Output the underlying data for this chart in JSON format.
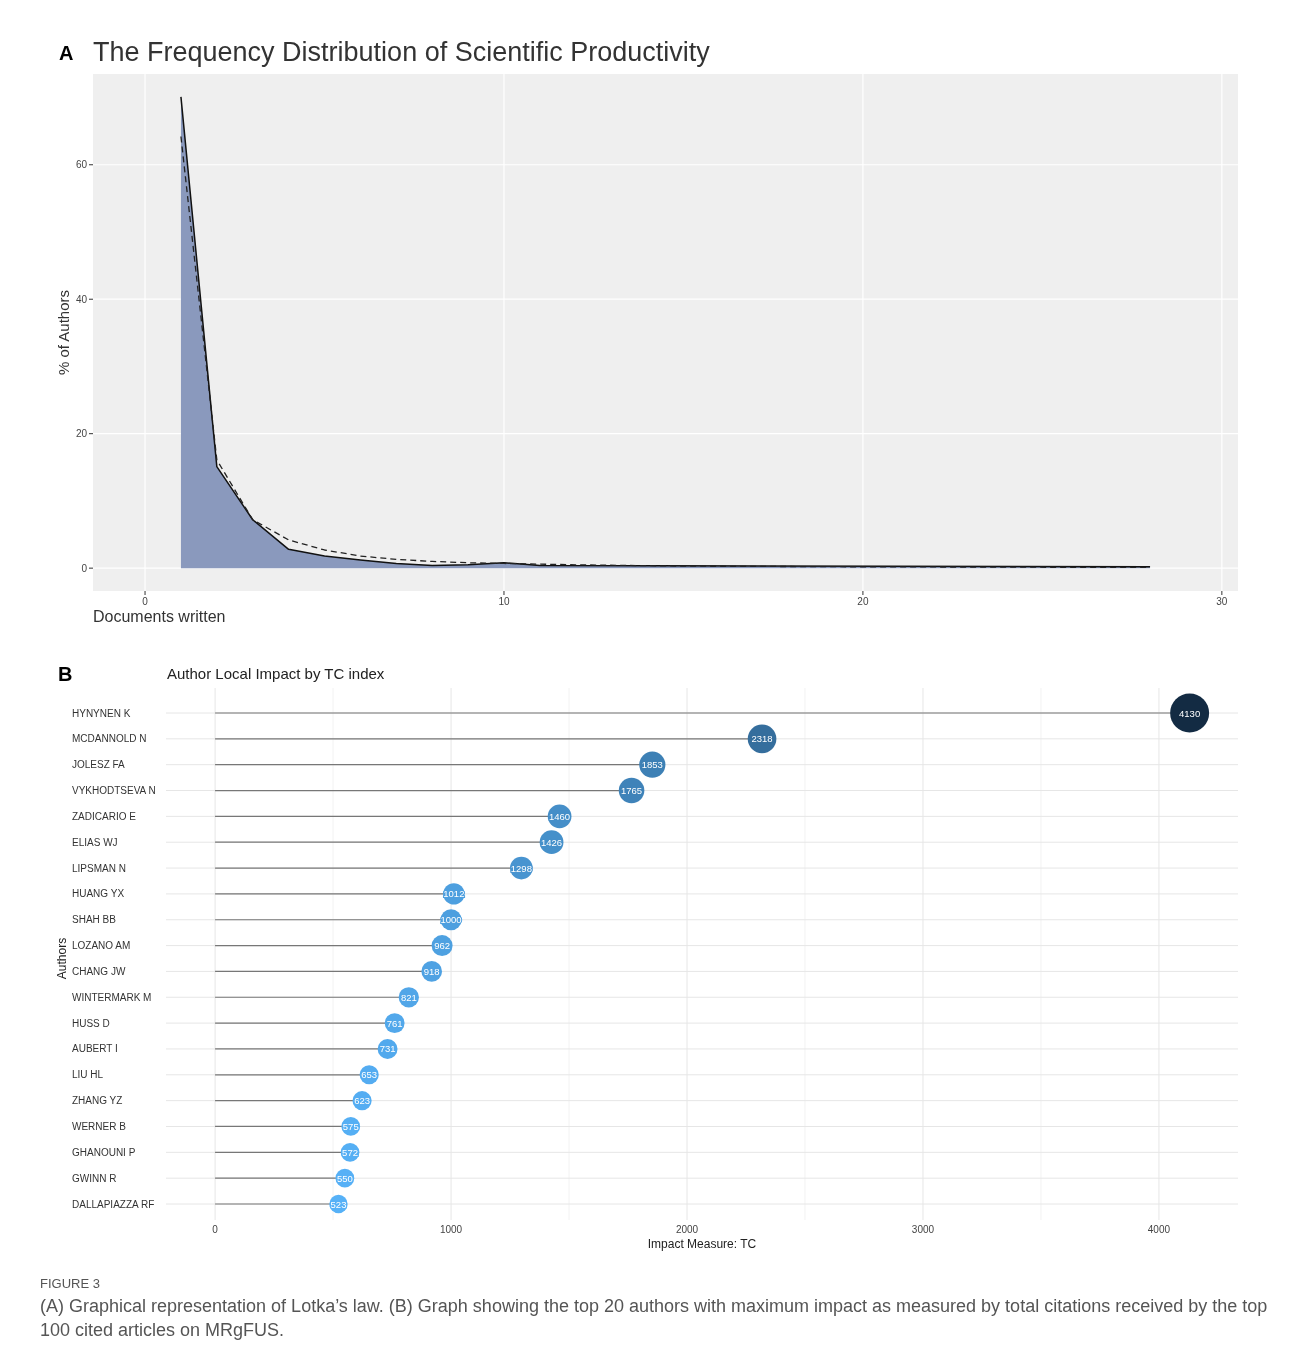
{
  "chart_data": [
    {
      "type": "area",
      "title": "The Frequency Distribution of Scientific Productivity",
      "annotations": [
        "A"
      ],
      "xlabel": "Documents written",
      "ylabel": "% of Authors",
      "xlim": [
        -1.45,
        30.45
      ],
      "ylim": [
        -3.4,
        73.5
      ],
      "xticks": [
        0,
        10,
        20,
        30
      ],
      "yticks": [
        0,
        20,
        40,
        60
      ],
      "grid": true,
      "series": [
        {
          "type": "area",
          "color": "#8a99bd",
          "x": [
            1,
            2,
            3,
            4,
            5,
            6,
            7,
            8,
            9,
            10,
            11,
            28
          ],
          "values": [
            70.1,
            15.1,
            7.2,
            2.8,
            1.8,
            1.2,
            0.7,
            0.4,
            0.5,
            0.8,
            0.4,
            0.2
          ]
        },
        {
          "type": "line",
          "color": "#222222",
          "line_style": "dashed",
          "x": [
            1,
            2,
            3,
            4,
            5,
            6,
            7,
            8,
            9,
            10,
            12,
            15,
            20,
            28
          ],
          "values": [
            64.2,
            16.1,
            7.2,
            4.2,
            2.7,
            1.8,
            1.3,
            1.0,
            0.8,
            0.7,
            0.5,
            0.3,
            0.2,
            0.1
          ]
        }
      ]
    },
    {
      "type": "lollipop",
      "orientation": "horizontal",
      "title": "Author Local Impact by TC index",
      "xlabel": "Impact Measure: TC",
      "ylabel": "Authors",
      "xlim": [
        -208,
        4335
      ],
      "xticks": [
        0,
        1000,
        2000,
        3000,
        4000
      ],
      "grid": true,
      "data_labels": true,
      "annotations": [
        "B",
        "FIGURE 3",
        "(A) Graphical representation of Lotka’s law. (B) Graph showing the top 20 authors with maximum impact as measured by total citations received by the top 100 cited articles on MRgFUS."
      ],
      "categories": [
        "HYNYNEN K",
        "MCDANNOLD N",
        "JOLESZ FA",
        "VYKHODTSEVA N",
        "ZADICARIO E",
        "ELIAS WJ",
        "LIPSMAN N",
        "HUANG YX",
        "SHAH BB",
        "LOZANO AM",
        "CHANG JW",
        "WINTERMARK M",
        "HUSS D",
        "AUBERT I",
        "LIU HL",
        "ZHANG YZ",
        "WERNER B",
        "GHANOUNI P",
        "GWINN R",
        "DALLAPIAZZA RF"
      ],
      "values": [
        4130,
        2318,
        1853,
        1765,
        1460,
        1426,
        1298,
        1012,
        1000,
        962,
        918,
        821,
        761,
        731,
        653,
        623,
        575,
        572,
        550,
        523
      ],
      "sizes": [
        1,
        0.54,
        0.45,
        0.43,
        0.37,
        0.37,
        0.34,
        0.3,
        0.29,
        0.29,
        0.28,
        0.27,
        0.26,
        0.26,
        0.24,
        0.24,
        0.23,
        0.23,
        0.23,
        0.22
      ],
      "colors": [
        "#132b43",
        "#356e9d",
        "#3d80b5",
        "#3f83b9",
        "#458ec8",
        "#4590ca",
        "#4894d0",
        "#4d9fdf",
        "#4d9fdf",
        "#4ea1e1",
        "#4fa2e3",
        "#51a6e8",
        "#52a8eb",
        "#52a9ed",
        "#54acf1",
        "#54adf2",
        "#55aff4",
        "#55aff4",
        "#56b0f6",
        "#56b1f7"
      ]
    }
  ]
}
